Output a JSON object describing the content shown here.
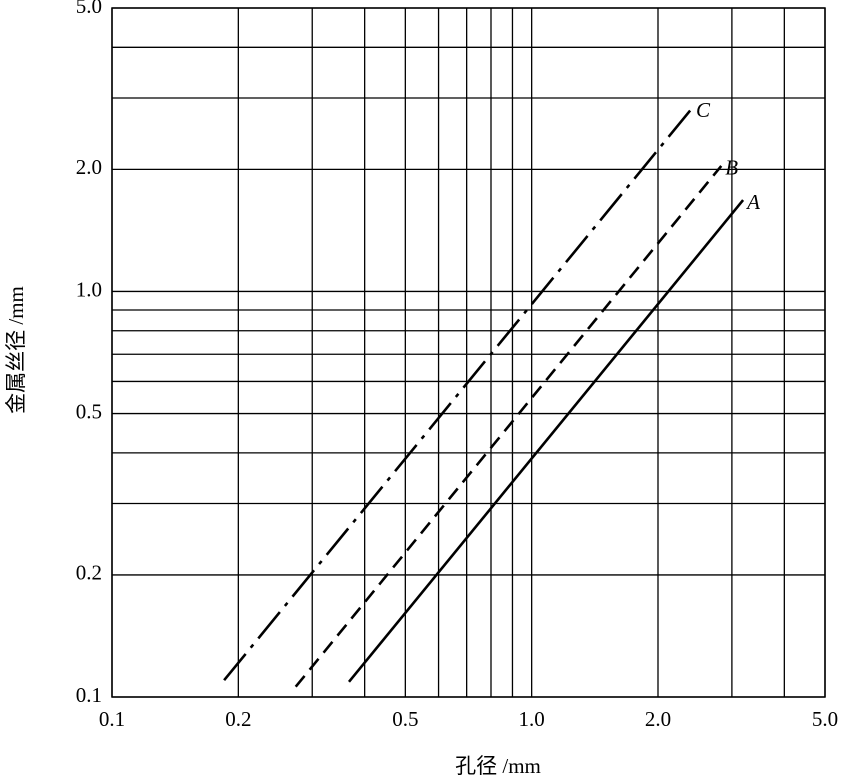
{
  "chart_data": {
    "type": "line",
    "x_label": "孔径 /mm",
    "y_label": "金属丝径 /mm",
    "log_x": true,
    "log_y": true,
    "grid": true,
    "xlim": [
      0.1,
      5.0
    ],
    "ylim": [
      0.1,
      5.0
    ],
    "xticks": [
      0.1,
      0.2,
      0.5,
      {
        "value": 1,
        "label": "1.0"
      },
      {
        "value": 2,
        "label": "2.0"
      },
      {
        "value": 5,
        "label": "5.0"
      }
    ],
    "yticks": [
      0.1,
      0.2,
      0.5,
      {
        "value": 1,
        "label": "1.0"
      },
      {
        "value": 2,
        "label": "2.0"
      },
      {
        "value": 5,
        "label": "5.0"
      }
    ],
    "xminor": [
      0.3,
      0.4,
      0.6,
      0.7,
      0.8,
      0.9,
      3,
      4
    ],
    "yminor": [
      0.3,
      0.4,
      0.6,
      0.7,
      0.8,
      0.9,
      3,
      4
    ],
    "series": [
      {
        "name": "C",
        "color": "#000000",
        "line_style": "dashdot",
        "x": [
          0.185,
          2.41
        ],
        "values": [
          0.11,
          2.83
        ]
      },
      {
        "name": "B",
        "color": "#000000",
        "line_style": "dashed",
        "x": [
          0.274,
          2.83
        ],
        "values": [
          0.106,
          2.04
        ]
      },
      {
        "name": "A",
        "color": "#000000",
        "line_style": "solid",
        "x": [
          0.367,
          3.19
        ],
        "values": [
          0.109,
          1.68
        ]
      }
    ]
  }
}
